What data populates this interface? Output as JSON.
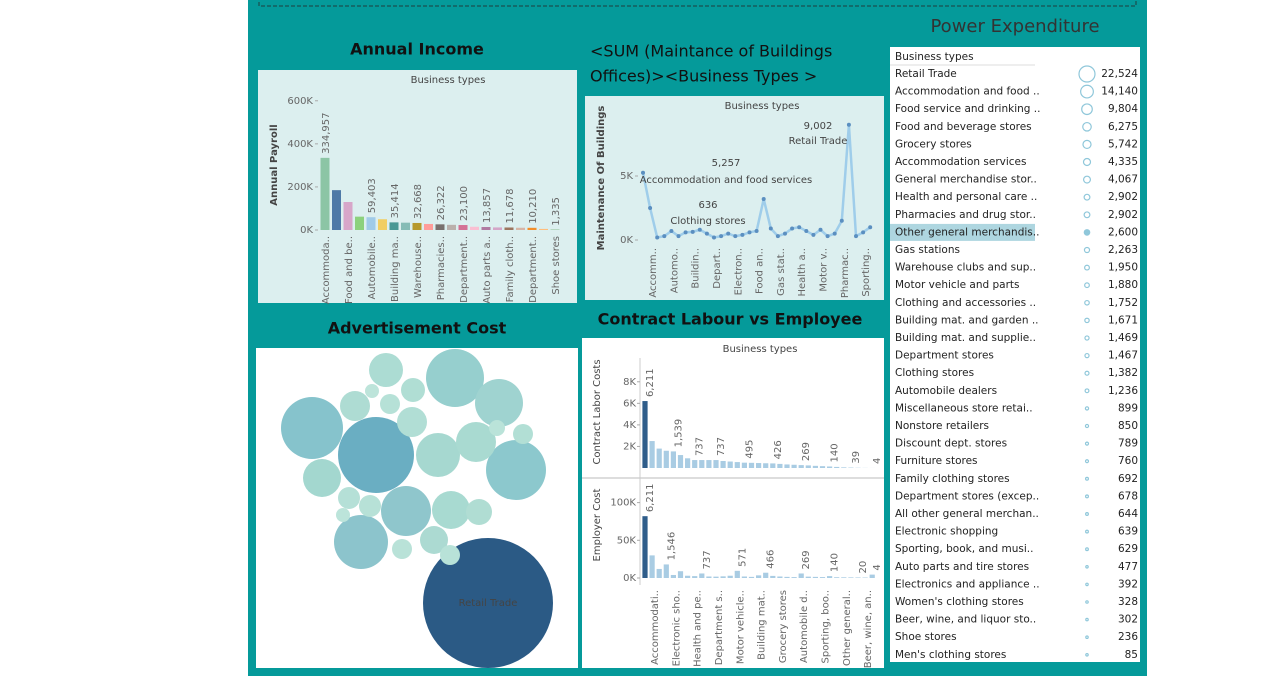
{
  "chart_data": [
    {
      "type": "bar",
      "title": "Annual Income",
      "subtitle": "Business types",
      "y_label": "Annual Payroll",
      "ylim": [
        0,
        650000
      ],
      "yticks": [
        {
          "value": 0,
          "label": "0K"
        },
        {
          "value": 200000,
          "label": "200K"
        },
        {
          "value": 400000,
          "label": "400K"
        },
        {
          "value": 600000,
          "label": "600K"
        }
      ],
      "categories": [
        "Accommoda..",
        null,
        "Food and be..",
        null,
        "Automobile..",
        null,
        "Building ma..",
        null,
        "Warehouse..",
        null,
        "Pharmacies..",
        null,
        "Department..",
        null,
        "Auto parts a..",
        null,
        "Family cloth..",
        null,
        "Department..",
        null,
        "Shoe stores"
      ],
      "values": [
        334957,
        185000,
        130000,
        62000,
        59403,
        50000,
        35414,
        34000,
        32668,
        28000,
        26322,
        24000,
        23100,
        15000,
        13857,
        12000,
        11678,
        10500,
        10210,
        5000,
        1335
      ],
      "value_labels": [
        "334,957",
        null,
        null,
        null,
        "59,403",
        null,
        "35,414",
        null,
        "32,668",
        null,
        "26,322",
        null,
        "23,100",
        null,
        "13,857",
        null,
        "11,678",
        null,
        "10,210",
        null,
        "1,335"
      ],
      "colors": [
        "#8cc5a5",
        "#4e79a7",
        "#d7a6c9",
        "#8cd17d",
        "#a0cbe8",
        "#f1ce63",
        "#499894",
        "#86bcb6",
        "#b6992d",
        "#ff9d9a",
        "#79706e",
        "#bab0ac",
        "#d37295",
        "#fabfd2",
        "#b07aa1",
        "#d4a6c8",
        "#9d7660",
        "#d7b5a6",
        "#f28e2b",
        "#ffbe7d",
        "#59a14f"
      ]
    },
    {
      "type": "line",
      "title": [
        "<SUM (Maintance of Buildings",
        "Offices)><Business Types >"
      ],
      "subtitle": "Business types",
      "y_label": "Maintenance Of Buildings",
      "ylim": [
        0,
        10000
      ],
      "yticks": [
        {
          "value": 0,
          "label": "0K"
        },
        {
          "value": 5000,
          "label": "5K"
        }
      ],
      "categories": [
        null,
        "Accomm..",
        null,
        null,
        "Automo..",
        null,
        null,
        "Buildin..",
        null,
        null,
        "Depart..",
        null,
        null,
        "Electron..",
        null,
        null,
        "Food an..",
        null,
        null,
        "Gas stat..",
        null,
        null,
        "Health a..",
        null,
        null,
        "Motor v..",
        null,
        null,
        "Pharmac..",
        null,
        null,
        "Sporting..",
        null
      ],
      "values": [
        5257,
        2500,
        200,
        300,
        700,
        300,
        600,
        636,
        800,
        500,
        200,
        300,
        500,
        300,
        400,
        600,
        700,
        3200,
        900,
        300,
        500,
        900,
        1000,
        700,
        400,
        800,
        300,
        500,
        1500,
        9002,
        300,
        600,
        1000
      ],
      "annotations": [
        "9,002",
        "Retail Trade",
        "5,257",
        "Accommodation and food services",
        "636",
        "Clothing stores"
      ],
      "color": "#9fcdea",
      "point_color": "#5b8fc0"
    },
    {
      "type": "bubble",
      "title": "Advertisement Cost",
      "values": [
        4225,
        1444,
        961,
        900,
        841,
        576,
        361,
        484,
        400,
        625,
        729,
        361,
        289,
        144,
        225,
        225,
        100,
        196,
        169,
        100,
        121,
        121,
        100,
        100,
        64,
        49,
        49
      ],
      "labels": [
        "Retail Trade",
        null,
        null,
        null,
        null,
        null,
        null,
        null,
        null,
        null,
        null,
        null,
        null,
        null,
        null,
        null,
        null,
        null,
        null,
        null,
        null,
        null,
        null,
        null,
        null,
        null,
        null
      ],
      "colors": [
        "#2b5a85",
        "#6aaec2",
        "#86c3cc",
        "#8cc8cd",
        "#96cfce",
        "#9fd3d0",
        "#a3d7cf",
        "#a6d8d0",
        "#a9dad1",
        "#8fc6cc",
        "#8cc4cc",
        "#a8dad1",
        "#acdcd3",
        "#b0ded4",
        "#aedcd3",
        "#b1ded5",
        "#b6e1d7",
        "#acdad2",
        "#b0ddd3",
        "#b8e2d8",
        "#b5e0d7",
        "#b7e1d7",
        "#b9e2d8",
        "#b2dfd5",
        "#bae3d9",
        "#bce4da",
        "#bde4da"
      ]
    },
    {
      "type": "bar_panels",
      "title": "Contract Labour vs Employee",
      "subtitle": "Business types",
      "categories": [
        null,
        "Accommodati..",
        null,
        null,
        "Electronic sho..",
        null,
        null,
        "Health and pe..",
        null,
        null,
        "Department s..",
        null,
        null,
        "Motor vehicle..",
        null,
        null,
        "Building mat..",
        null,
        null,
        "Grocery stores",
        null,
        null,
        "Automobile d..",
        null,
        null,
        "Sporting, boo..",
        null,
        null,
        "Other general..",
        null,
        null,
        "Beer, wine, an..",
        null
      ],
      "color": "#a9cce3",
      "accent_color": "#2f5d8a",
      "accent_index": 0,
      "panels": [
        {
          "y_label": "Contract Labor Costs",
          "ylim": [
            0,
            9000
          ],
          "yticks": [
            {
              "value": 2000,
              "label": "2K"
            },
            {
              "value": 4000,
              "label": "4K"
            },
            {
              "value": 6000,
              "label": "6K"
            },
            {
              "value": 8000,
              "label": "8K"
            }
          ],
          "values": [
            6211,
            2500,
            1800,
            1600,
            1539,
            1200,
            900,
            737,
            737,
            737,
            737,
            650,
            600,
            550,
            495,
            480,
            460,
            440,
            426,
            380,
            330,
            300,
            269,
            240,
            200,
            170,
            140,
            100,
            60,
            39,
            20,
            10,
            4
          ],
          "value_labels": [
            "6,211",
            null,
            null,
            null,
            "1,539",
            null,
            null,
            "737",
            null,
            null,
            "737",
            null,
            null,
            null,
            "495",
            null,
            null,
            null,
            "426",
            null,
            null,
            null,
            "269",
            null,
            null,
            null,
            "140",
            null,
            null,
            "39",
            null,
            null,
            "4"
          ]
        },
        {
          "y_label": "Employer Cost",
          "ylim": [
            0,
            130000
          ],
          "yticks": [
            {
              "value": 0,
              "label": "0K"
            },
            {
              "value": 50000,
              "label": "50K"
            },
            {
              "value": 100000,
              "label": "100K"
            }
          ],
          "values": [
            82000,
            30000,
            12000,
            18000,
            4000,
            9000,
            3000,
            2500,
            6000,
            2000,
            1800,
            2200,
            3000,
            9500,
            2000,
            1500,
            3500,
            7000,
            2800,
            2000,
            1500,
            1200,
            6000,
            1800,
            1500,
            1200,
            2500,
            1000,
            900,
            800,
            700,
            600,
            4500
          ],
          "bar_labels": [
            "6,211",
            null,
            null,
            "1,546",
            null,
            null,
            null,
            null,
            "737",
            null,
            null,
            null,
            null,
            "571",
            null,
            null,
            null,
            "466",
            null,
            null,
            null,
            null,
            "269",
            null,
            null,
            null,
            "140",
            null,
            null,
            null,
            "20",
            null,
            "4"
          ]
        }
      ]
    },
    {
      "type": "table",
      "title": "Power Expenditure",
      "header": "Business types",
      "selected_index": 9,
      "categories": [
        "Retail Trade",
        "Accommodation and food ..",
        "Food service and drinking ..",
        "Food and beverage stores",
        "Grocery stores",
        "Accommodation services",
        "General merchandise stor..",
        "Health and personal care ..",
        "Pharmacies and drug stor..",
        "Other general merchandis..",
        "Gas stations",
        "Warehouse clubs and sup..",
        "Motor vehicle and parts",
        "Clothing and accessories ..",
        "Building mat. and garden ..",
        "Building mat. and supplie..",
        "Department stores",
        "Clothing stores",
        "Automobile dealers",
        "Miscellaneous store retai..",
        "Nonstore retailers",
        "Discount dept. stores",
        "Furniture stores",
        "Family clothing stores",
        "Department stores (excep..",
        "All other general merchan..",
        "Electronic shopping",
        "Sporting, book, and musi..",
        "Auto parts and tire stores",
        "Electronics and appliance ..",
        "Women's clothing stores",
        "Beer, wine, and liquor sto..",
        "Shoe stores",
        "Men's clothing stores"
      ],
      "values": [
        22524,
        14140,
        9804,
        6275,
        5742,
        4335,
        4067,
        2902,
        2902,
        2600,
        2263,
        1950,
        1880,
        1752,
        1671,
        1469,
        1467,
        1382,
        1236,
        899,
        850,
        789,
        760,
        692,
        678,
        644,
        639,
        629,
        477,
        392,
        328,
        302,
        236,
        85
      ],
      "value_labels": [
        "22,524",
        "14,140",
        "9,804",
        "6,275",
        "5,742",
        "4,335",
        "4,067",
        "2,902",
        "2,902",
        "2,600",
        "2,263",
        "1,950",
        "1,880",
        "1,752",
        "1,671",
        "1,469",
        "1,467",
        "1,382",
        "1,236",
        "899",
        "850",
        "789",
        "760",
        "692",
        "678",
        "644",
        "639",
        "629",
        "477",
        "392",
        "328",
        "302",
        "236",
        "85"
      ],
      "color": "#8fc7da",
      "highlight": "#aed6e0"
    }
  ]
}
